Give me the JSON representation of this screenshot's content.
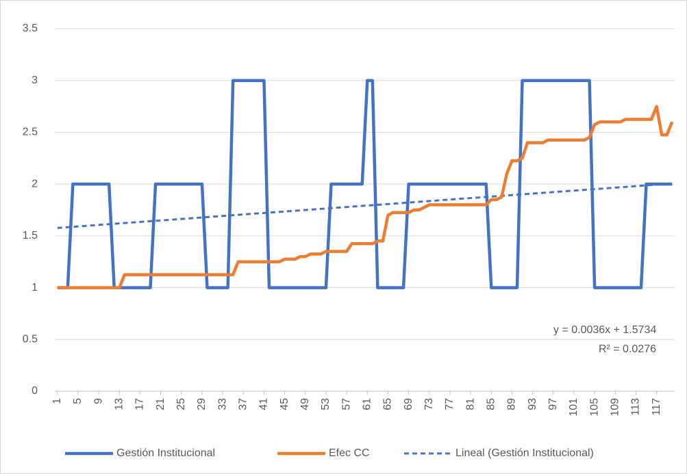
{
  "chart_data": {
    "type": "line",
    "x": [
      1,
      2,
      3,
      4,
      5,
      6,
      7,
      8,
      9,
      10,
      11,
      12,
      13,
      14,
      15,
      16,
      17,
      18,
      19,
      20,
      21,
      22,
      23,
      24,
      25,
      26,
      27,
      28,
      29,
      30,
      31,
      32,
      33,
      34,
      35,
      36,
      37,
      38,
      39,
      40,
      41,
      42,
      43,
      44,
      45,
      46,
      47,
      48,
      49,
      50,
      51,
      52,
      53,
      54,
      55,
      56,
      57,
      58,
      59,
      60,
      61,
      62,
      63,
      64,
      65,
      66,
      67,
      68,
      69,
      70,
      71,
      72,
      73,
      74,
      75,
      76,
      77,
      78,
      79,
      80,
      81,
      82,
      83,
      84,
      85,
      86,
      87,
      88,
      89,
      90,
      91,
      92,
      93,
      94,
      95,
      96,
      97,
      98,
      99,
      100,
      101,
      102,
      103,
      104,
      105,
      106,
      107,
      108,
      109,
      110,
      111,
      112,
      113,
      114,
      115,
      116,
      117,
      118,
      119,
      120
    ],
    "series": [
      {
        "name": "Gestión Institucional",
        "color": "#4472c4",
        "values": [
          1,
          1,
          1,
          2,
          2,
          2,
          2,
          2,
          2,
          2,
          2,
          1,
          1,
          1,
          1,
          1,
          1,
          1,
          1,
          2,
          2,
          2,
          2,
          2,
          2,
          2,
          2,
          2,
          2,
          1,
          1,
          1,
          1,
          1,
          3,
          3,
          3,
          3,
          3,
          3,
          3,
          1,
          1,
          1,
          1,
          1,
          1,
          1,
          1,
          1,
          1,
          1,
          1,
          2,
          2,
          2,
          2,
          2,
          2,
          2,
          3,
          3,
          1,
          1,
          1,
          1,
          1,
          1,
          2,
          2,
          2,
          2,
          2,
          2,
          2,
          2,
          2,
          2,
          2,
          2,
          2,
          2,
          2,
          2,
          1,
          1,
          1,
          1,
          1,
          1,
          3,
          3,
          3,
          3,
          3,
          3,
          3,
          3,
          3,
          3,
          3,
          3,
          3,
          3,
          1,
          1,
          1,
          1,
          1,
          1,
          1,
          1,
          1,
          1,
          2,
          2,
          2,
          2,
          2,
          2
        ]
      },
      {
        "name": "Efec CC",
        "color": "#ed7d31",
        "values": [
          1,
          1,
          1,
          1,
          1,
          1,
          1,
          1,
          1,
          1,
          1,
          1,
          1,
          1.125,
          1.125,
          1.125,
          1.125,
          1.125,
          1.125,
          1.125,
          1.125,
          1.125,
          1.125,
          1.125,
          1.125,
          1.125,
          1.125,
          1.125,
          1.125,
          1.125,
          1.125,
          1.125,
          1.125,
          1.125,
          1.125,
          1.25,
          1.25,
          1.25,
          1.25,
          1.25,
          1.25,
          1.25,
          1.25,
          1.25,
          1.275,
          1.275,
          1.275,
          1.3,
          1.3,
          1.325,
          1.325,
          1.325,
          1.35,
          1.35,
          1.35,
          1.35,
          1.35,
          1.425,
          1.425,
          1.425,
          1.425,
          1.425,
          1.45,
          1.45,
          1.7,
          1.725,
          1.725,
          1.725,
          1.725,
          1.75,
          1.75,
          1.775,
          1.8,
          1.8,
          1.8,
          1.8,
          1.8,
          1.8,
          1.8,
          1.8,
          1.8,
          1.8,
          1.8,
          1.8,
          1.85,
          1.85,
          1.875,
          2.1,
          2.225,
          2.225,
          2.25,
          2.4,
          2.4,
          2.4,
          2.4,
          2.425,
          2.425,
          2.425,
          2.425,
          2.425,
          2.425,
          2.425,
          2.425,
          2.45,
          2.575,
          2.6,
          2.6,
          2.6,
          2.6,
          2.6,
          2.625,
          2.625,
          2.625,
          2.625,
          2.625,
          2.625,
          2.75,
          2.475,
          2.475,
          2.6
        ]
      }
    ],
    "trendline": {
      "name": "Lineal (Gestión Institucional)",
      "color": "#4472c4",
      "slope": 0.0036,
      "intercept": 1.5734,
      "equation": "y = 0.0036x + 1.5734",
      "r2": "R² = 0.0276"
    },
    "xlim": [
      0.5,
      120.5
    ],
    "xticks": [
      1,
      5,
      9,
      13,
      17,
      21,
      25,
      29,
      33,
      37,
      41,
      45,
      49,
      53,
      57,
      61,
      65,
      69,
      73,
      77,
      81,
      85,
      89,
      93,
      97,
      101,
      105,
      109,
      113,
      117
    ],
    "ylim": [
      0,
      3.5
    ],
    "yticks": [
      0,
      {
        "value": 0.5,
        "label": "0.5"
      },
      1,
      {
        "value": 1.5,
        "label": "1.5"
      },
      2,
      {
        "value": 2.5,
        "label": "2.5"
      },
      3,
      {
        "value": 3.5,
        "label": "3.5"
      }
    ],
    "grid": true,
    "legend": "bottom"
  }
}
